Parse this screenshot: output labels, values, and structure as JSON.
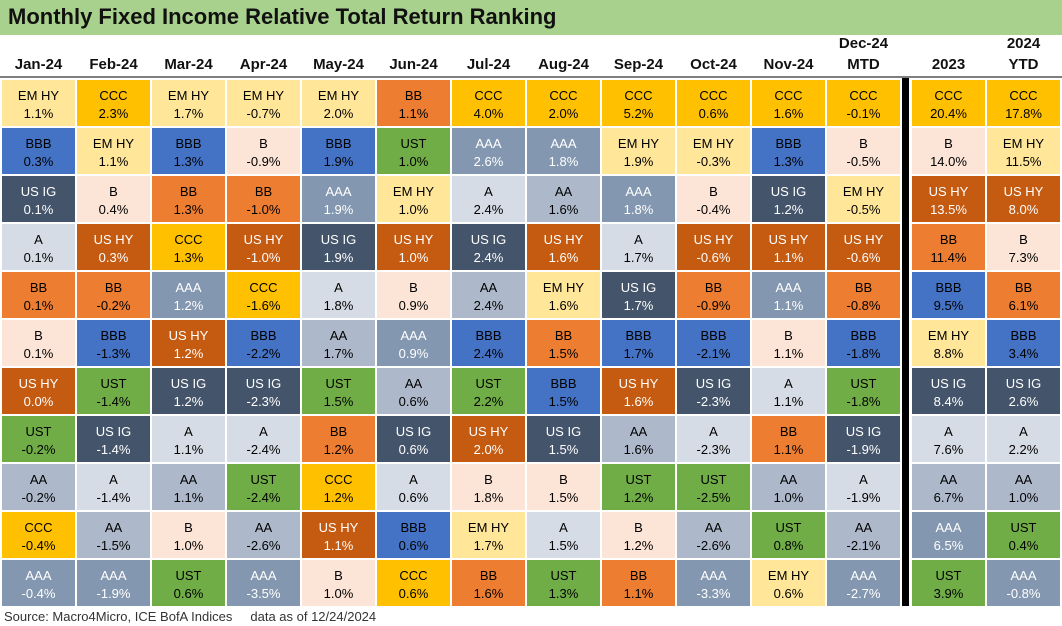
{
  "title": "Monthly Fixed Income Relative Total Return Ranking",
  "footer": "Source: Macro4Micro, ICE BofA Indices     data as of 12/24/2024",
  "colors": {
    "CCC": {
      "bg": "#ffc000",
      "fg": "#000000"
    },
    "EM HY": {
      "bg": "#ffe699",
      "fg": "#000000"
    },
    "B": {
      "bg": "#fce4d6",
      "fg": "#000000"
    },
    "BB": {
      "bg": "#ed7d31",
      "fg": "#000000"
    },
    "US HY": {
      "bg": "#c55a11",
      "fg": "#ffffff"
    },
    "BBB": {
      "bg": "#4472c4",
      "fg": "#000000"
    },
    "US IG": {
      "bg": "#44546a",
      "fg": "#ffffff"
    },
    "A": {
      "bg": "#d6dce5",
      "fg": "#000000"
    },
    "AA": {
      "bg": "#adb9ca",
      "fg": "#000000"
    },
    "AAA": {
      "bg": "#8497b0",
      "fg": "#ffffff"
    },
    "UST": {
      "bg": "#70ad47",
      "fg": "#000000"
    }
  },
  "chart_data": {
    "type": "table",
    "title": "Monthly Fixed Income Relative Total Return Ranking",
    "columns": [
      {
        "line1": "",
        "line2": "Jan-24",
        "cells": [
          {
            "name": "EM HY",
            "value": "1.1%"
          },
          {
            "name": "BBB",
            "value": "0.3%"
          },
          {
            "name": "US IG",
            "value": "0.1%"
          },
          {
            "name": "A",
            "value": "0.1%"
          },
          {
            "name": "BB",
            "value": "0.1%"
          },
          {
            "name": "B",
            "value": "0.1%"
          },
          {
            "name": "US HY",
            "value": "0.0%"
          },
          {
            "name": "UST",
            "value": "-0.2%"
          },
          {
            "name": "AA",
            "value": "-0.2%"
          },
          {
            "name": "CCC",
            "value": "-0.4%"
          },
          {
            "name": "AAA",
            "value": "-0.4%"
          }
        ]
      },
      {
        "line1": "",
        "line2": "Feb-24",
        "cells": [
          {
            "name": "CCC",
            "value": "2.3%"
          },
          {
            "name": "EM HY",
            "value": "1.1%"
          },
          {
            "name": "B",
            "value": "0.4%"
          },
          {
            "name": "US HY",
            "value": "0.3%"
          },
          {
            "name": "BB",
            "value": "-0.2%"
          },
          {
            "name": "BBB",
            "value": "-1.3%"
          },
          {
            "name": "UST",
            "value": "-1.4%"
          },
          {
            "name": "US IG",
            "value": "-1.4%"
          },
          {
            "name": "A",
            "value": "-1.4%"
          },
          {
            "name": "AA",
            "value": "-1.5%"
          },
          {
            "name": "AAA",
            "value": "-1.9%"
          }
        ]
      },
      {
        "line1": "",
        "line2": "Mar-24",
        "cells": [
          {
            "name": "EM HY",
            "value": "1.7%"
          },
          {
            "name": "BBB",
            "value": "1.3%"
          },
          {
            "name": "BB",
            "value": "1.3%"
          },
          {
            "name": "CCC",
            "value": "1.3%"
          },
          {
            "name": "AAA",
            "value": "1.2%"
          },
          {
            "name": "US HY",
            "value": "1.2%"
          },
          {
            "name": "US IG",
            "value": "1.2%"
          },
          {
            "name": "A",
            "value": "1.1%"
          },
          {
            "name": "AA",
            "value": "1.1%"
          },
          {
            "name": "B",
            "value": "1.0%"
          },
          {
            "name": "UST",
            "value": "0.6%"
          }
        ]
      },
      {
        "line1": "",
        "line2": "Apr-24",
        "cells": [
          {
            "name": "EM HY",
            "value": "-0.7%"
          },
          {
            "name": "B",
            "value": "-0.9%"
          },
          {
            "name": "BB",
            "value": "-1.0%"
          },
          {
            "name": "US HY",
            "value": "-1.0%"
          },
          {
            "name": "CCC",
            "value": "-1.6%"
          },
          {
            "name": "BBB",
            "value": "-2.2%"
          },
          {
            "name": "US IG",
            "value": "-2.3%"
          },
          {
            "name": "A",
            "value": "-2.4%"
          },
          {
            "name": "UST",
            "value": "-2.4%"
          },
          {
            "name": "AA",
            "value": "-2.6%"
          },
          {
            "name": "AAA",
            "value": "-3.5%"
          }
        ]
      },
      {
        "line1": "",
        "line2": "May-24",
        "cells": [
          {
            "name": "EM HY",
            "value": "2.0%"
          },
          {
            "name": "BBB",
            "value": "1.9%"
          },
          {
            "name": "AAA",
            "value": "1.9%"
          },
          {
            "name": "US IG",
            "value": "1.9%"
          },
          {
            "name": "A",
            "value": "1.8%"
          },
          {
            "name": "AA",
            "value": "1.7%"
          },
          {
            "name": "UST",
            "value": "1.5%"
          },
          {
            "name": "BB",
            "value": "1.2%"
          },
          {
            "name": "CCC",
            "value": "1.2%"
          },
          {
            "name": "US HY",
            "value": "1.1%"
          },
          {
            "name": "B",
            "value": "1.0%"
          }
        ]
      },
      {
        "line1": "",
        "line2": "Jun-24",
        "cells": [
          {
            "name": "BB",
            "value": "1.1%"
          },
          {
            "name": "UST",
            "value": "1.0%"
          },
          {
            "name": "EM HY",
            "value": "1.0%"
          },
          {
            "name": "US HY",
            "value": "1.0%"
          },
          {
            "name": "B",
            "value": "0.9%"
          },
          {
            "name": "AAA",
            "value": "0.9%"
          },
          {
            "name": "AA",
            "value": "0.6%"
          },
          {
            "name": "US IG",
            "value": "0.6%"
          },
          {
            "name": "A",
            "value": "0.6%"
          },
          {
            "name": "BBB",
            "value": "0.6%"
          },
          {
            "name": "CCC",
            "value": "0.6%"
          }
        ]
      },
      {
        "line1": "",
        "line2": "Jul-24",
        "cells": [
          {
            "name": "CCC",
            "value": "4.0%"
          },
          {
            "name": "AAA",
            "value": "2.6%"
          },
          {
            "name": "A",
            "value": "2.4%"
          },
          {
            "name": "US IG",
            "value": "2.4%"
          },
          {
            "name": "AA",
            "value": "2.4%"
          },
          {
            "name": "BBB",
            "value": "2.4%"
          },
          {
            "name": "UST",
            "value": "2.2%"
          },
          {
            "name": "US HY",
            "value": "2.0%"
          },
          {
            "name": "B",
            "value": "1.8%"
          },
          {
            "name": "EM HY",
            "value": "1.7%"
          },
          {
            "name": "BB",
            "value": "1.6%"
          }
        ]
      },
      {
        "line1": "",
        "line2": "Aug-24",
        "cells": [
          {
            "name": "CCC",
            "value": "2.0%"
          },
          {
            "name": "AAA",
            "value": "1.8%"
          },
          {
            "name": "AA",
            "value": "1.6%"
          },
          {
            "name": "US HY",
            "value": "1.6%"
          },
          {
            "name": "EM HY",
            "value": "1.6%"
          },
          {
            "name": "BB",
            "value": "1.5%"
          },
          {
            "name": "BBB",
            "value": "1.5%"
          },
          {
            "name": "US IG",
            "value": "1.5%"
          },
          {
            "name": "B",
            "value": "1.5%"
          },
          {
            "name": "A",
            "value": "1.5%"
          },
          {
            "name": "UST",
            "value": "1.3%"
          }
        ]
      },
      {
        "line1": "",
        "line2": "Sep-24",
        "cells": [
          {
            "name": "CCC",
            "value": "5.2%"
          },
          {
            "name": "EM HY",
            "value": "1.9%"
          },
          {
            "name": "AAA",
            "value": "1.8%"
          },
          {
            "name": "A",
            "value": "1.7%"
          },
          {
            "name": "US IG",
            "value": "1.7%"
          },
          {
            "name": "BBB",
            "value": "1.7%"
          },
          {
            "name": "US HY",
            "value": "1.6%"
          },
          {
            "name": "AA",
            "value": "1.6%"
          },
          {
            "name": "UST",
            "value": "1.2%"
          },
          {
            "name": "B",
            "value": "1.2%"
          },
          {
            "name": "BB",
            "value": "1.1%"
          }
        ]
      },
      {
        "line1": "",
        "line2": "Oct-24",
        "cells": [
          {
            "name": "CCC",
            "value": "0.6%"
          },
          {
            "name": "EM HY",
            "value": "-0.3%"
          },
          {
            "name": "B",
            "value": "-0.4%"
          },
          {
            "name": "US HY",
            "value": "-0.6%"
          },
          {
            "name": "BB",
            "value": "-0.9%"
          },
          {
            "name": "BBB",
            "value": "-2.1%"
          },
          {
            "name": "US IG",
            "value": "-2.3%"
          },
          {
            "name": "A",
            "value": "-2.3%"
          },
          {
            "name": "UST",
            "value": "-2.5%"
          },
          {
            "name": "AA",
            "value": "-2.6%"
          },
          {
            "name": "AAA",
            "value": "-3.3%"
          }
        ]
      },
      {
        "line1": "",
        "line2": "Nov-24",
        "cells": [
          {
            "name": "CCC",
            "value": "1.6%"
          },
          {
            "name": "BBB",
            "value": "1.3%"
          },
          {
            "name": "US IG",
            "value": "1.2%"
          },
          {
            "name": "US HY",
            "value": "1.1%"
          },
          {
            "name": "AAA",
            "value": "1.1%"
          },
          {
            "name": "B",
            "value": "1.1%"
          },
          {
            "name": "A",
            "value": "1.1%"
          },
          {
            "name": "BB",
            "value": "1.1%"
          },
          {
            "name": "AA",
            "value": "1.0%"
          },
          {
            "name": "UST",
            "value": "0.8%"
          },
          {
            "name": "EM HY",
            "value": "0.6%"
          }
        ]
      },
      {
        "line1": "Dec-24",
        "line2": "MTD",
        "cells": [
          {
            "name": "CCC",
            "value": "-0.1%"
          },
          {
            "name": "B",
            "value": "-0.5%"
          },
          {
            "name": "EM HY",
            "value": "-0.5%"
          },
          {
            "name": "US HY",
            "value": "-0.6%"
          },
          {
            "name": "BB",
            "value": "-0.8%"
          },
          {
            "name": "BBB",
            "value": "-1.8%"
          },
          {
            "name": "UST",
            "value": "-1.8%"
          },
          {
            "name": "US IG",
            "value": "-1.9%"
          },
          {
            "name": "A",
            "value": "-1.9%"
          },
          {
            "name": "AA",
            "value": "-2.1%"
          },
          {
            "name": "AAA",
            "value": "-2.7%"
          }
        ]
      },
      {
        "line1": "",
        "line2": "2023",
        "cells": [
          {
            "name": "CCC",
            "value": "20.4%"
          },
          {
            "name": "B",
            "value": "14.0%"
          },
          {
            "name": "US HY",
            "value": "13.5%"
          },
          {
            "name": "BB",
            "value": "11.4%"
          },
          {
            "name": "BBB",
            "value": "9.5%"
          },
          {
            "name": "EM HY",
            "value": "8.8%"
          },
          {
            "name": "US IG",
            "value": "8.4%"
          },
          {
            "name": "A",
            "value": "7.6%"
          },
          {
            "name": "AA",
            "value": "6.7%"
          },
          {
            "name": "AAA",
            "value": "6.5%"
          },
          {
            "name": "UST",
            "value": "3.9%"
          }
        ]
      },
      {
        "line1": "2024",
        "line2": "YTD",
        "cells": [
          {
            "name": "CCC",
            "value": "17.8%"
          },
          {
            "name": "EM HY",
            "value": "11.5%"
          },
          {
            "name": "US HY",
            "value": "8.0%"
          },
          {
            "name": "B",
            "value": "7.3%"
          },
          {
            "name": "BB",
            "value": "6.1%"
          },
          {
            "name": "BBB",
            "value": "3.4%"
          },
          {
            "name": "US IG",
            "value": "2.6%"
          },
          {
            "name": "A",
            "value": "2.2%"
          },
          {
            "name": "AA",
            "value": "1.0%"
          },
          {
            "name": "UST",
            "value": "0.4%"
          },
          {
            "name": "AAA",
            "value": "-0.8%"
          }
        ]
      }
    ]
  }
}
